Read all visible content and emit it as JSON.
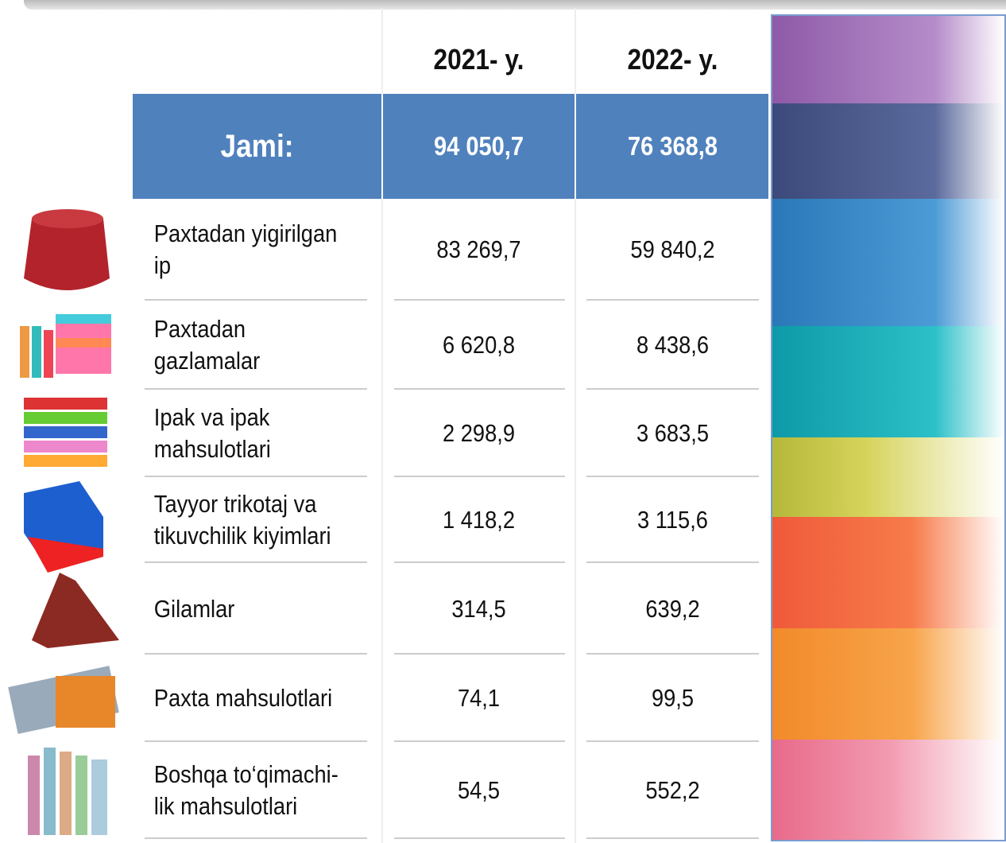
{
  "table": {
    "header": [
      "2021- y.",
      "2022- y."
    ],
    "total": {
      "label": "Jami:",
      "values": [
        "94 050,7",
        "76 368,8"
      ]
    },
    "rows": [
      [
        "Paxtadan yigirilgan  ip",
        "83 269,7",
        "59 840,2"
      ],
      [
        "Paxtadan gazlamalar",
        "6 620,8",
        "8 438,6"
      ],
      [
        "Ipak va ipak mahsulotlari",
        "2 298,9",
        "3 683,5"
      ],
      [
        "Tayyor trikotaj va tikuvchilik kiyimlari",
        "1 418,2",
        "3 115,6"
      ],
      [
        "Gilamlar",
        "314,5",
        "639,2"
      ],
      [
        "Paxta mahsulotlari",
        "74,1",
        "99,5"
      ],
      [
        "Boshqa to‘qimachi-lik mahsulotlari",
        "54,5",
        "552,2"
      ]
    ]
  }
}
